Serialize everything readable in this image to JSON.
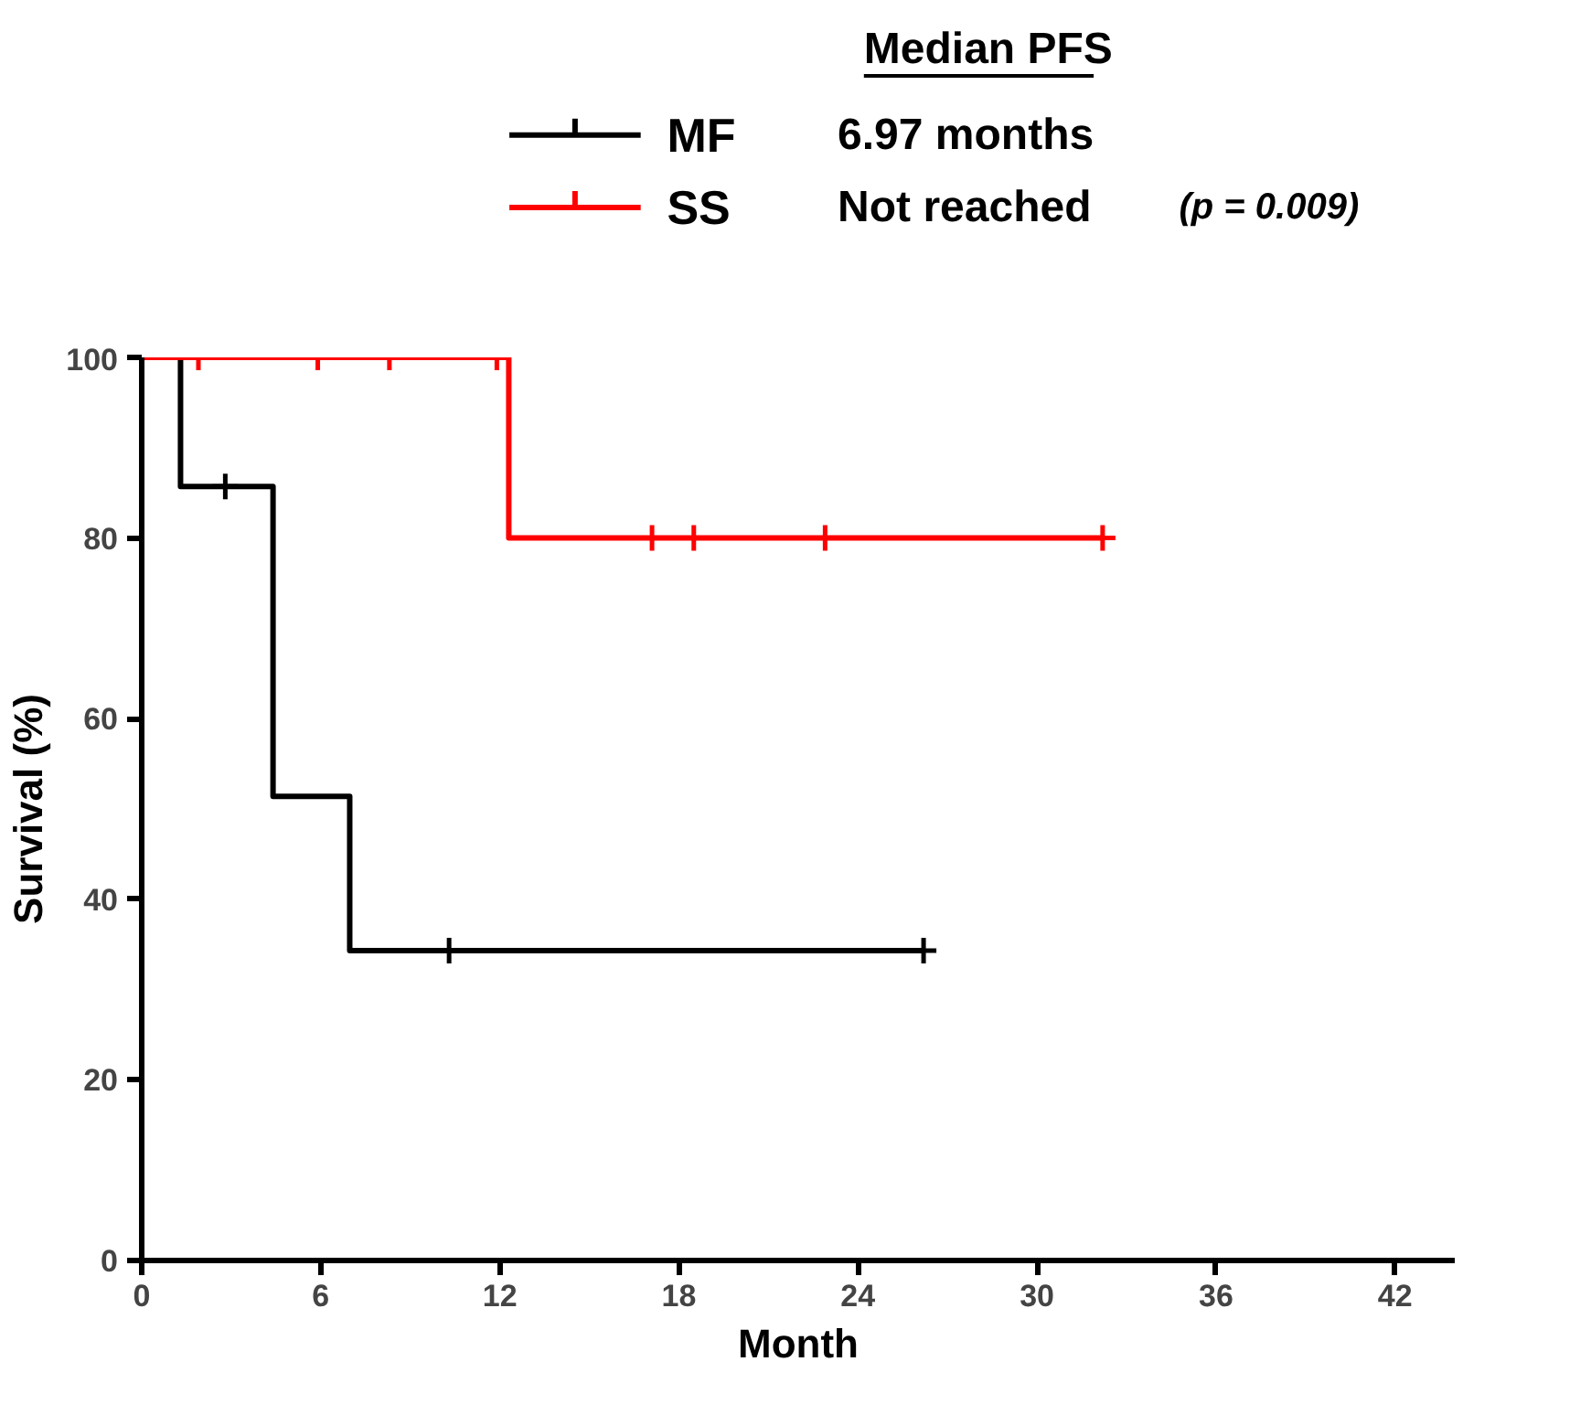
{
  "chart_data": {
    "type": "step",
    "xlabel": "Month",
    "ylabel": "Survival (%)",
    "legend_title": "Median PFS",
    "legend": "top",
    "grid": false,
    "line_style": "solid",
    "xlim": [
      0,
      44
    ],
    "ylim": [
      0,
      100
    ],
    "xticks": [
      0,
      6,
      12,
      18,
      24,
      30,
      36,
      42
    ],
    "yticks": [
      0,
      20,
      40,
      60,
      80,
      100
    ],
    "series": [
      {
        "name": "MF",
        "color": "#000000",
        "x": [
          0,
          1.3,
          4.4,
          6.97,
          26.2
        ],
        "values": [
          100,
          85.7,
          51.4,
          34.3,
          34.3
        ]
      },
      {
        "name": "SS",
        "color": "#ff0000",
        "x": [
          0,
          12.3,
          32.2
        ],
        "values": [
          100,
          80,
          80
        ]
      },
      {
        "type": "scatter",
        "marker": "cross",
        "color": "#000000",
        "x": [
          2.8,
          10.3,
          26.2
        ],
        "values": [
          85.7,
          34.3,
          34.3
        ]
      },
      {
        "type": "scatter",
        "marker": "cross",
        "color": "#ff0000",
        "x": [
          1.9,
          5.9,
          8.3,
          11.9,
          17.1,
          18.5,
          22.9,
          32.2
        ],
        "values": [
          100,
          100,
          100,
          100,
          80,
          80,
          80,
          80
        ]
      }
    ],
    "annotations": [
      "6.97 months",
      "Not reached",
      "(p = 0.009)"
    ]
  }
}
